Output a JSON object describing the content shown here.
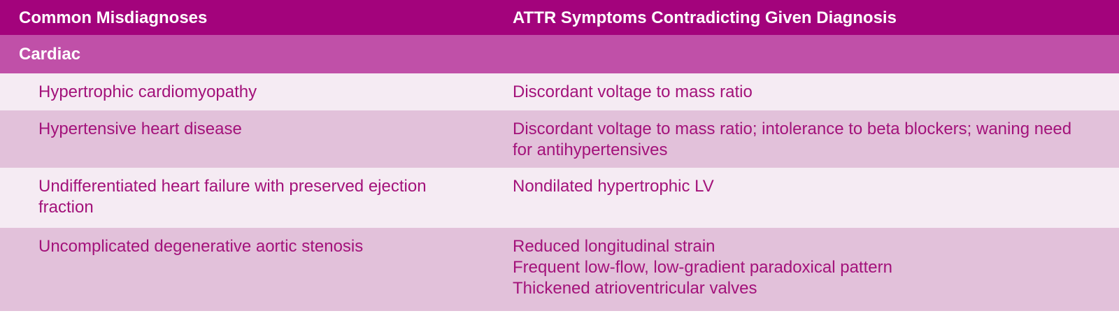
{
  "table": {
    "columns": [
      "Common Misdiagnoses",
      "ATTR Symptoms Contradicting Given Diagnosis"
    ],
    "section": "Cardiac",
    "rows": [
      [
        "Hypertrophic cardiomyopathy",
        "Discordant voltage to mass ratio"
      ],
      [
        "Hypertensive heart disease",
        "Discordant voltage to mass ratio; intolerance to beta blockers; waning need for antihypertensives"
      ],
      [
        "Undifferentiated heart failure with preserved ejection fraction",
        "Nondilated hypertrophic LV"
      ],
      [
        "Uncomplicated degenerative aortic stenosis",
        [
          "Reduced longitudinal strain",
          "Frequent low-flow, low-gradient paradoxical pattern",
          "Thickened atrioventricular valves"
        ]
      ]
    ]
  }
}
